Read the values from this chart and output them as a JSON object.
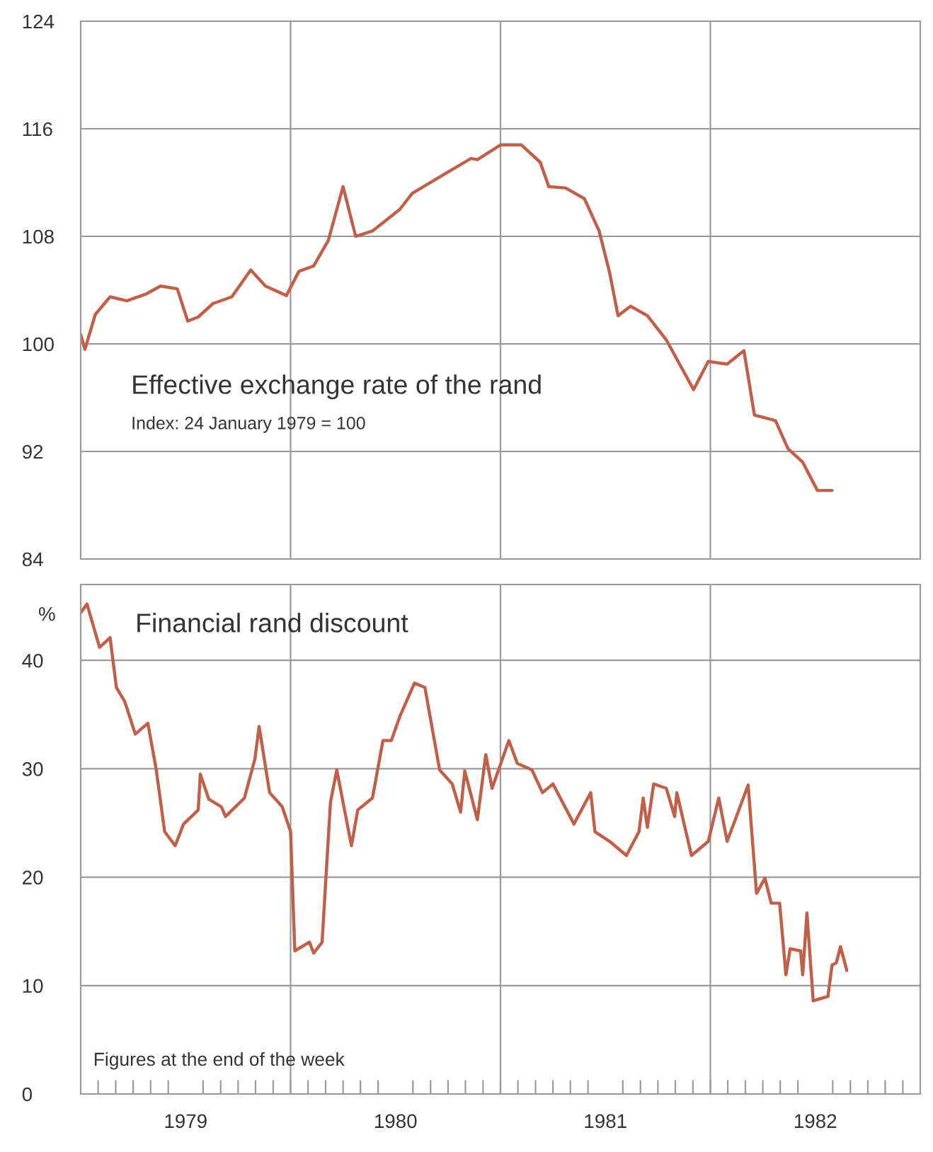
{
  "chart_data": [
    {
      "type": "line",
      "title": "Effective exchange rate of the rand",
      "subtitle": "Index: 24 January 1979 = 100",
      "x": [
        1979.0,
        1979.02,
        1979.07,
        1979.14,
        1979.22,
        1979.31,
        1979.38,
        1979.46,
        1979.51,
        1979.56,
        1979.63,
        1979.72,
        1979.81,
        1979.88,
        1979.98,
        1980.04,
        1980.11,
        1980.18,
        1980.25,
        1980.31,
        1980.39,
        1980.52,
        1980.58,
        1980.73,
        1980.86,
        1980.89,
        1981.0,
        1981.1,
        1981.19,
        1981.23,
        1981.31,
        1981.4,
        1981.47,
        1981.52,
        1981.56,
        1981.62,
        1981.7,
        1981.79,
        1981.92,
        1981.99,
        1982.08,
        1982.16,
        1982.21,
        1982.31,
        1982.37,
        1982.44,
        1982.51,
        1982.58
      ],
      "series": [
        {
          "color": "#c0604a",
          "values": [
            100.7,
            99.6,
            102.2,
            103.5,
            103.2,
            103.7,
            104.3,
            104.1,
            101.7,
            102.0,
            103.0,
            103.5,
            105.5,
            104.3,
            103.6,
            105.4,
            105.8,
            107.7,
            111.7,
            108.0,
            108.4,
            110.0,
            111.2,
            112.6,
            113.8,
            113.7,
            114.8,
            114.8,
            113.5,
            111.7,
            111.6,
            110.8,
            108.4,
            105.3,
            102.1,
            102.8,
            102.1,
            100.3,
            96.6,
            98.7,
            98.5,
            99.5,
            94.7,
            94.3,
            92.2,
            91.2,
            89.1,
            89.1
          ]
        }
      ],
      "xlim": [
        1979,
        1983
      ],
      "ylim": [
        84,
        124
      ],
      "yticks": [
        84,
        92,
        100,
        108,
        116,
        124
      ],
      "tick_labels": "y",
      "grid": "y",
      "legend": false,
      "ref_lines": [
        {
          "axis": "x",
          "value": 1980,
          "color": "#9a9a9a"
        },
        {
          "axis": "x",
          "value": 1981,
          "color": "#9a9a9a"
        },
        {
          "axis": "x",
          "value": 1982,
          "color": "#9a9a9a"
        }
      ]
    },
    {
      "type": "line",
      "title": "Financial rand discount",
      "ylabel": "%",
      "annotations": [
        "Figures at the end of the week"
      ],
      "x": [
        1979.0,
        1979.03,
        1979.09,
        1979.14,
        1979.17,
        1979.21,
        1979.26,
        1979.32,
        1979.36,
        1979.4,
        1979.45,
        1979.49,
        1979.56,
        1979.57,
        1979.61,
        1979.67,
        1979.69,
        1979.78,
        1979.83,
        1979.85,
        1979.9,
        1979.96,
        1980.0,
        1980.02,
        1980.09,
        1980.11,
        1980.15,
        1980.19,
        1980.22,
        1980.29,
        1980.32,
        1980.39,
        1980.44,
        1980.48,
        1980.52,
        1980.59,
        1980.64,
        1980.71,
        1980.77,
        1980.81,
        1980.83,
        1980.89,
        1980.93,
        1980.96,
        1981.04,
        1981.08,
        1981.15,
        1981.2,
        1981.25,
        1981.35,
        1981.43,
        1981.45,
        1981.52,
        1981.6,
        1981.66,
        1981.68,
        1981.7,
        1981.73,
        1981.79,
        1981.83,
        1981.84,
        1981.91,
        1981.99,
        1982.04,
        1982.08,
        1982.18,
        1982.22,
        1982.26,
        1982.29,
        1982.33,
        1982.36,
        1982.38,
        1982.43,
        1982.44,
        1982.46,
        1982.49,
        1982.56,
        1982.58,
        1982.6,
        1982.62,
        1982.65
      ],
      "series": [
        {
          "color": "#c0604a",
          "values": [
            44.4,
            45.2,
            41.2,
            42.1,
            37.5,
            36.2,
            33.2,
            34.2,
            29.9,
            24.2,
            22.9,
            24.9,
            26.2,
            29.5,
            27.2,
            26.5,
            25.6,
            27.3,
            30.9,
            33.9,
            27.8,
            26.5,
            24.2,
            13.2,
            14.0,
            13.0,
            14.0,
            26.9,
            29.9,
            22.9,
            26.2,
            27.3,
            32.6,
            32.6,
            34.8,
            37.9,
            37.5,
            29.9,
            28.6,
            26.0,
            29.8,
            25.3,
            31.3,
            28.2,
            32.6,
            30.5,
            29.9,
            27.8,
            28.6,
            24.9,
            27.8,
            24.2,
            23.3,
            22.0,
            24.2,
            27.3,
            24.6,
            28.6,
            28.2,
            25.6,
            27.8,
            22.0,
            23.3,
            27.3,
            23.3,
            28.5,
            18.5,
            19.9,
            17.6,
            17.6,
            11.0,
            13.4,
            13.2,
            11.0,
            16.7,
            8.6,
            9.0,
            11.9,
            12.1,
            13.6,
            11.4
          ]
        }
      ],
      "xlim": [
        1979,
        1983
      ],
      "ylim": [
        0,
        47
      ],
      "yticks": [
        0,
        10,
        20,
        30,
        40
      ],
      "xticks": [
        {
          "value": 1979.5,
          "label": "1979"
        },
        {
          "value": 1980.5,
          "label": "1980"
        },
        {
          "value": 1981.5,
          "label": "1981"
        },
        {
          "value": 1982.5,
          "label": "1982"
        },
        {
          "value": 1979.083,
          "label": null
        },
        {
          "value": 1979.167,
          "label": null
        },
        {
          "value": 1979.25,
          "label": null
        },
        {
          "value": 1979.333,
          "label": null
        },
        {
          "value": 1979.417,
          "label": null
        },
        {
          "value": 1979.583,
          "label": null
        },
        {
          "value": 1979.667,
          "label": null
        },
        {
          "value": 1979.75,
          "label": null
        },
        {
          "value": 1979.833,
          "label": null
        },
        {
          "value": 1979.917,
          "label": null
        },
        {
          "value": 1980.0,
          "label": null
        },
        {
          "value": 1980.083,
          "label": null
        },
        {
          "value": 1980.167,
          "label": null
        },
        {
          "value": 1980.25,
          "label": null
        },
        {
          "value": 1980.333,
          "label": null
        },
        {
          "value": 1980.417,
          "label": null
        },
        {
          "value": 1980.583,
          "label": null
        },
        {
          "value": 1980.667,
          "label": null
        },
        {
          "value": 1980.75,
          "label": null
        },
        {
          "value": 1980.833,
          "label": null
        },
        {
          "value": 1980.917,
          "label": null
        },
        {
          "value": 1981.0,
          "label": null
        },
        {
          "value": 1981.083,
          "label": null
        },
        {
          "value": 1981.167,
          "label": null
        },
        {
          "value": 1981.25,
          "label": null
        },
        {
          "value": 1981.333,
          "label": null
        },
        {
          "value": 1981.417,
          "label": null
        },
        {
          "value": 1981.583,
          "label": null
        },
        {
          "value": 1981.667,
          "label": null
        },
        {
          "value": 1981.75,
          "label": null
        },
        {
          "value": 1981.833,
          "label": null
        },
        {
          "value": 1981.917,
          "label": null
        },
        {
          "value": 1982.0,
          "label": null
        },
        {
          "value": 1982.083,
          "label": null
        },
        {
          "value": 1982.167,
          "label": null
        },
        {
          "value": 1982.25,
          "label": null
        },
        {
          "value": 1982.333,
          "label": null
        },
        {
          "value": 1982.417,
          "label": null
        },
        {
          "value": 1982.583,
          "label": null
        },
        {
          "value": 1982.667,
          "label": null
        },
        {
          "value": 1982.75,
          "label": null
        },
        {
          "value": 1982.833,
          "label": null
        },
        {
          "value": 1982.917,
          "label": null
        }
      ],
      "grid": "y",
      "legend": false,
      "ref_lines": [
        {
          "axis": "x",
          "value": 1980,
          "color": "#9a9a9a"
        },
        {
          "axis": "x",
          "value": 1981,
          "color": "#9a9a9a"
        },
        {
          "axis": "x",
          "value": 1982,
          "color": "#9a9a9a"
        }
      ]
    }
  ]
}
